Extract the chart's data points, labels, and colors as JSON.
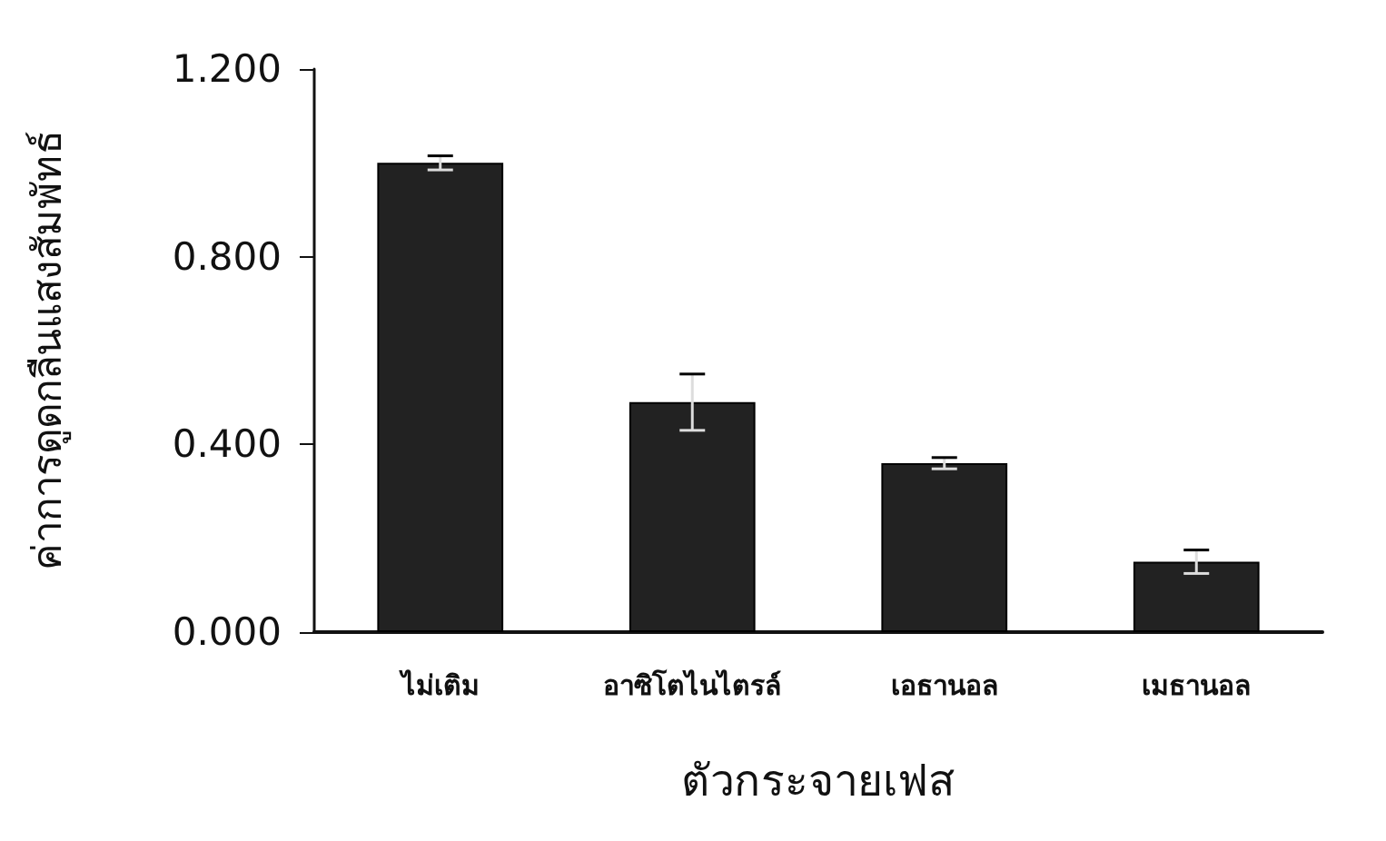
{
  "chart_data": {
    "type": "bar",
    "xlabel": "ตัวกระจายเฟส",
    "ylabel": "ค่าการดูดกลืนแสงสัมพัทธ์",
    "categories": [
      "ไม่เติม",
      "อาซิโตไนไตรล์",
      "เอธานอล",
      "เมธานอล"
    ],
    "values": [
      1.0,
      0.49,
      0.36,
      0.15
    ],
    "errors": [
      0.015,
      0.06,
      0.012,
      0.025
    ],
    "color": "#222222",
    "ylim": [
      0,
      1.2
    ],
    "yticks": [
      {
        "value": 0,
        "label": "0.000"
      },
      {
        "value": 0.4,
        "label": "0.400"
      },
      {
        "value": 0.8,
        "label": "0.800"
      },
      {
        "value": 1.2,
        "label": "1.200"
      }
    ],
    "grid": false
  }
}
